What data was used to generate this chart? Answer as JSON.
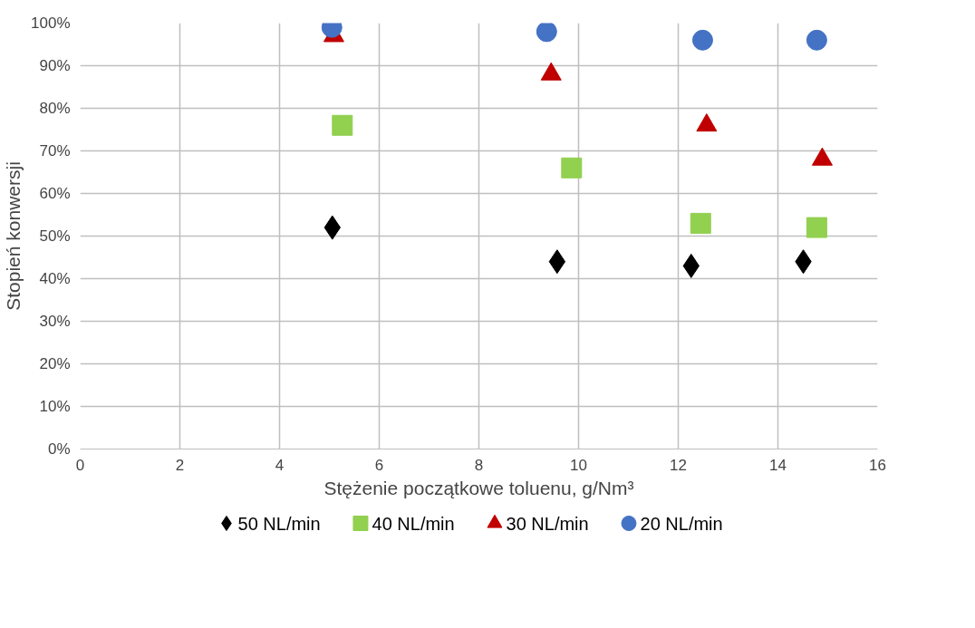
{
  "chart_data": {
    "type": "scatter",
    "xlabel": "Stężenie początkowe toluenu, g/Nm³",
    "ylabel": "Stopień konwersji",
    "xlim": [
      0,
      16
    ],
    "xticks": [
      0,
      2,
      4,
      6,
      8,
      10,
      12,
      14,
      16
    ],
    "ylim": [
      0,
      100
    ],
    "yticks": [
      {
        "value": 0,
        "label": "0%"
      },
      {
        "value": 10,
        "label": "10%"
      },
      {
        "value": 20,
        "label": "20%"
      },
      {
        "value": 30,
        "label": "30%"
      },
      {
        "value": 40,
        "label": "40%"
      },
      {
        "value": 50,
        "label": "50%"
      },
      {
        "value": 60,
        "label": "60%"
      },
      {
        "value": 70,
        "label": "70%"
      },
      {
        "value": 80,
        "label": "80%"
      },
      {
        "value": 90,
        "label": "90%"
      },
      {
        "value": 100,
        "label": "100%"
      }
    ],
    "grid": true,
    "legend": "bottom",
    "series": [
      {
        "name": "50 NL/min",
        "color": "#000000",
        "marker": "diamond",
        "x": [
          5.06,
          9.57,
          12.26,
          14.51
        ],
        "values": [
          52,
          44,
          43,
          44
        ]
      },
      {
        "name": "40 NL/min",
        "color": "#92d050",
        "marker": "square",
        "x": [
          5.26,
          9.86,
          12.45,
          14.78
        ],
        "values": [
          76,
          66,
          53,
          52
        ]
      },
      {
        "name": "30 NL/min",
        "color": "#c00000",
        "marker": "triangle",
        "x": [
          5.09,
          9.45,
          12.57,
          14.89
        ],
        "values": [
          97,
          88,
          76,
          68
        ]
      },
      {
        "name": "20 NL/min",
        "color": "#4472c4",
        "marker": "circle",
        "x": [
          5.05,
          9.36,
          12.49,
          14.78
        ],
        "values": [
          99,
          98,
          96,
          96
        ]
      }
    ]
  }
}
